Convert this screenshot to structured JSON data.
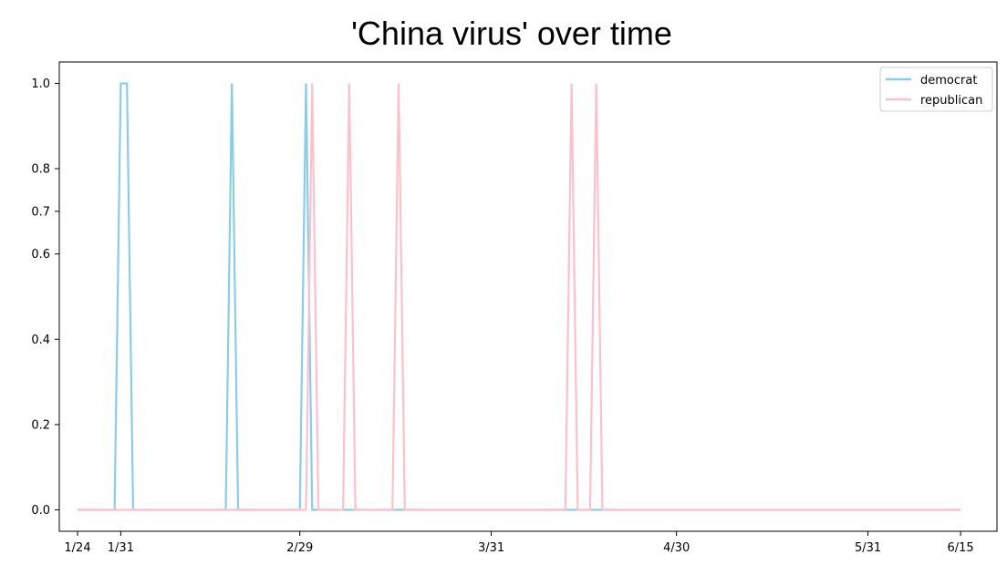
{
  "chart_data": {
    "type": "line",
    "title": "'China virus' over time",
    "xlabel": "",
    "ylabel": "",
    "x_start": "2020-01-24",
    "x_end": "2020-06-15",
    "x_ticks": [
      {
        "label": "1/24",
        "date": "2020-01-24"
      },
      {
        "label": "1/31",
        "date": "2020-01-31"
      },
      {
        "label": "2/29",
        "date": "2020-02-29"
      },
      {
        "label": "3/31",
        "date": "2020-03-31"
      },
      {
        "label": "4/30",
        "date": "2020-04-30"
      },
      {
        "label": "5/31",
        "date": "2020-05-31"
      },
      {
        "label": "6/15",
        "date": "2020-06-15"
      }
    ],
    "ylim": [
      0,
      1.05
    ],
    "y_ticks": [
      "0.0",
      "0.2",
      "0.4",
      "0.6",
      "0.7",
      "0.8",
      "1.0"
    ],
    "grid": false,
    "legend_position": "top-right",
    "series": [
      {
        "name": "democrat",
        "color": "#87ceeb",
        "spike_dates": [
          "2020-01-31",
          "2020-02-01",
          "2020-02-18",
          "2020-03-01"
        ]
      },
      {
        "name": "republican",
        "color": "#ffc0cb",
        "spike_dates": [
          "2020-03-02",
          "2020-03-08",
          "2020-03-16",
          "2020-04-13",
          "2020-04-17"
        ]
      }
    ]
  }
}
